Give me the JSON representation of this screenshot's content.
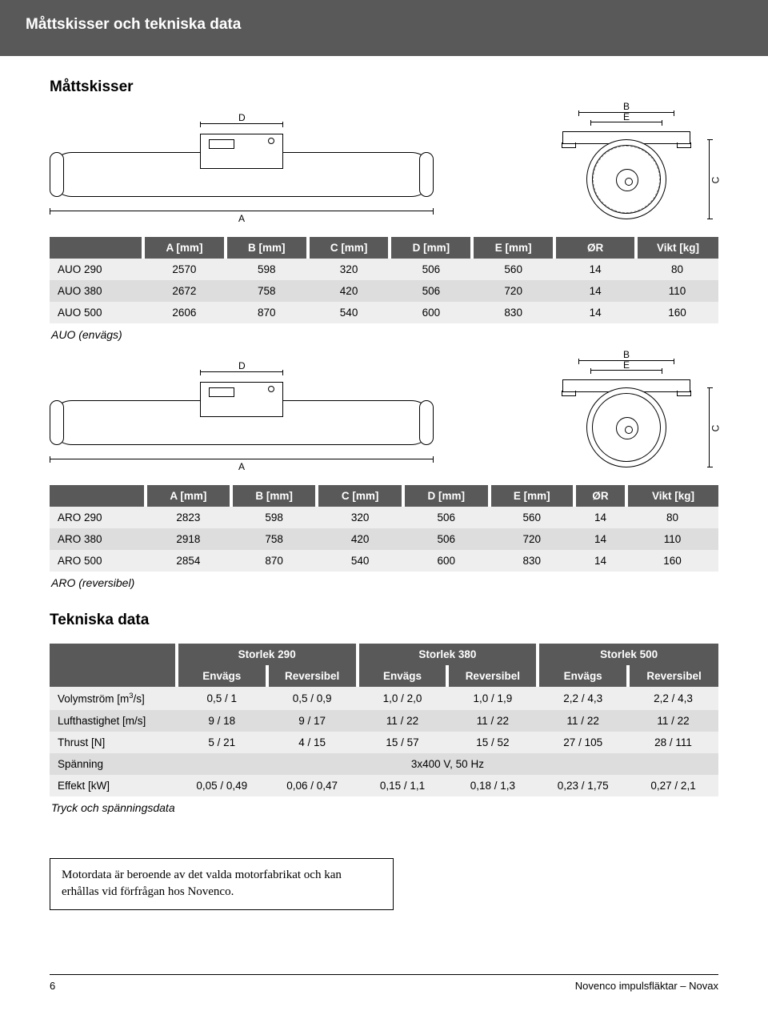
{
  "header": {
    "title": "Måttskisser och tekniska data"
  },
  "sections": {
    "drawings": "Måttskisser",
    "techdata": "Tekniska data"
  },
  "dim_labels": {
    "A": "A",
    "B": "B",
    "C": "C",
    "D": "D",
    "E": "E"
  },
  "table_auo": {
    "caption": "AUO (envägs)",
    "columns": [
      "",
      "A [mm]",
      "B [mm]",
      "C [mm]",
      "D [mm]",
      "E [mm]",
      "ØR",
      "Vikt [kg]"
    ],
    "rows": [
      [
        "AUO 290",
        "2570",
        "598",
        "320",
        "506",
        "560",
        "14",
        "80"
      ],
      [
        "AUO 380",
        "2672",
        "758",
        "420",
        "506",
        "720",
        "14",
        "110"
      ],
      [
        "AUO 500",
        "2606",
        "870",
        "540",
        "600",
        "830",
        "14",
        "160"
      ]
    ],
    "col_widths": [
      "14%",
      "12.3%",
      "12.3%",
      "12.3%",
      "12.3%",
      "12.3%",
      "12.2%",
      "12.3%"
    ]
  },
  "table_aro": {
    "caption": "ARO (reversibel)",
    "columns": [
      "",
      "A [mm]",
      "B [mm]",
      "C [mm]",
      "D [mm]",
      "E [mm]",
      "ØR",
      "Vikt [kg]"
    ],
    "rows": [
      [
        "ARO 290",
        "2823",
        "598",
        "320",
        "506",
        "560",
        "14",
        "80"
      ],
      [
        "ARO 380",
        "2918",
        "758",
        "420",
        "506",
        "720",
        "14",
        "110"
      ],
      [
        "ARO 500",
        "2854",
        "870",
        "540",
        "600",
        "830",
        "14",
        "160"
      ]
    ]
  },
  "table_tech": {
    "caption": "Tryck och spänningsdata",
    "group_headers": [
      "",
      "Storlek 290",
      "Storlek 380",
      "Storlek 500"
    ],
    "sub_headers": [
      "",
      "Envägs",
      "Reversibel",
      "Envägs",
      "Reversibel",
      "Envägs",
      "Reversibel"
    ],
    "rows": [
      {
        "label_html": "Volymström [m<sup>3</sup>/s]",
        "cells": [
          "0,5 / 1",
          "0,5 / 0,9",
          "1,0 / 2,0",
          "1,0 / 1,9",
          "2,2 / 4,3",
          "2,2 / 4,3"
        ]
      },
      {
        "label_html": "Lufthastighet [m/s]",
        "cells": [
          "9 / 18",
          "9 / 17",
          "11 / 22",
          "11 / 22",
          "11 / 22",
          "11 / 22"
        ]
      },
      {
        "label_html": "Thrust [N]",
        "cells": [
          "5 / 21",
          "4 / 15",
          "15 / 57",
          "15 / 52",
          "27 / 105",
          "28 / 111"
        ]
      },
      {
        "label_html": "Spänning",
        "merged": "3x400 V, 50 Hz"
      },
      {
        "label_html": "Effekt [kW]",
        "cells": [
          "0,05 / 0,49",
          "0,06 / 0,47",
          "0,15 / 1,1",
          "0,18 / 1,3",
          "0,23 / 1,75",
          "0,27 / 2,1"
        ]
      }
    ],
    "col_widths": [
      "19%",
      "13.5%",
      "13.5%",
      "13.5%",
      "13.5%",
      "13.5%",
      "13.5%"
    ]
  },
  "note": "Motordata är beroende av det valda motorfabrikat och kan erhållas vid förfrågan hos Novenco.",
  "footer": {
    "page": "6",
    "doc": "Novenco impulsfläktar – Novax"
  },
  "colors": {
    "header_bg": "#595959",
    "row_odd": "#eeeeee",
    "row_even": "#dddddd",
    "text": "#000000",
    "white": "#ffffff"
  }
}
